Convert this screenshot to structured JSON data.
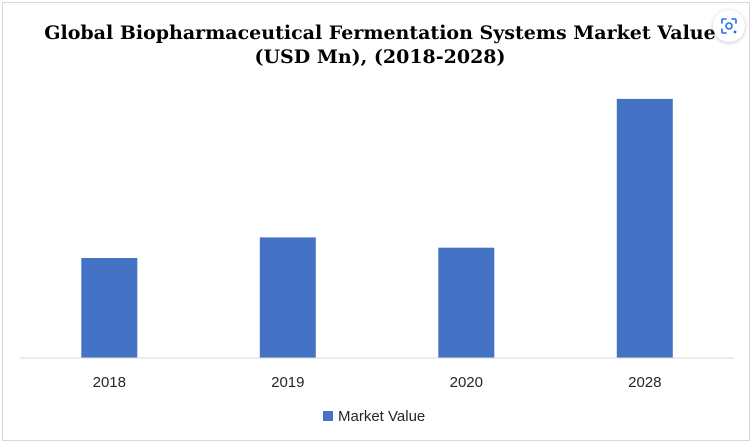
{
  "chart_data": {
    "type": "bar",
    "title": "Global Biopharmaceutical Fermentation Systems Market Value (USD Mn), (2018-2028)",
    "categories": [
      "2018",
      "2019",
      "2020",
      "2028"
    ],
    "series": [
      {
        "name": "Market Value",
        "values": [
          39,
          47,
          43,
          101
        ],
        "color": "#4472c4"
      }
    ],
    "xlabel": "",
    "ylabel": "",
    "ylim": [
      0,
      115
    ],
    "grid": false,
    "legend": "bottom-center"
  },
  "ui": {
    "lens_button_icon": "visual-search-icon"
  }
}
